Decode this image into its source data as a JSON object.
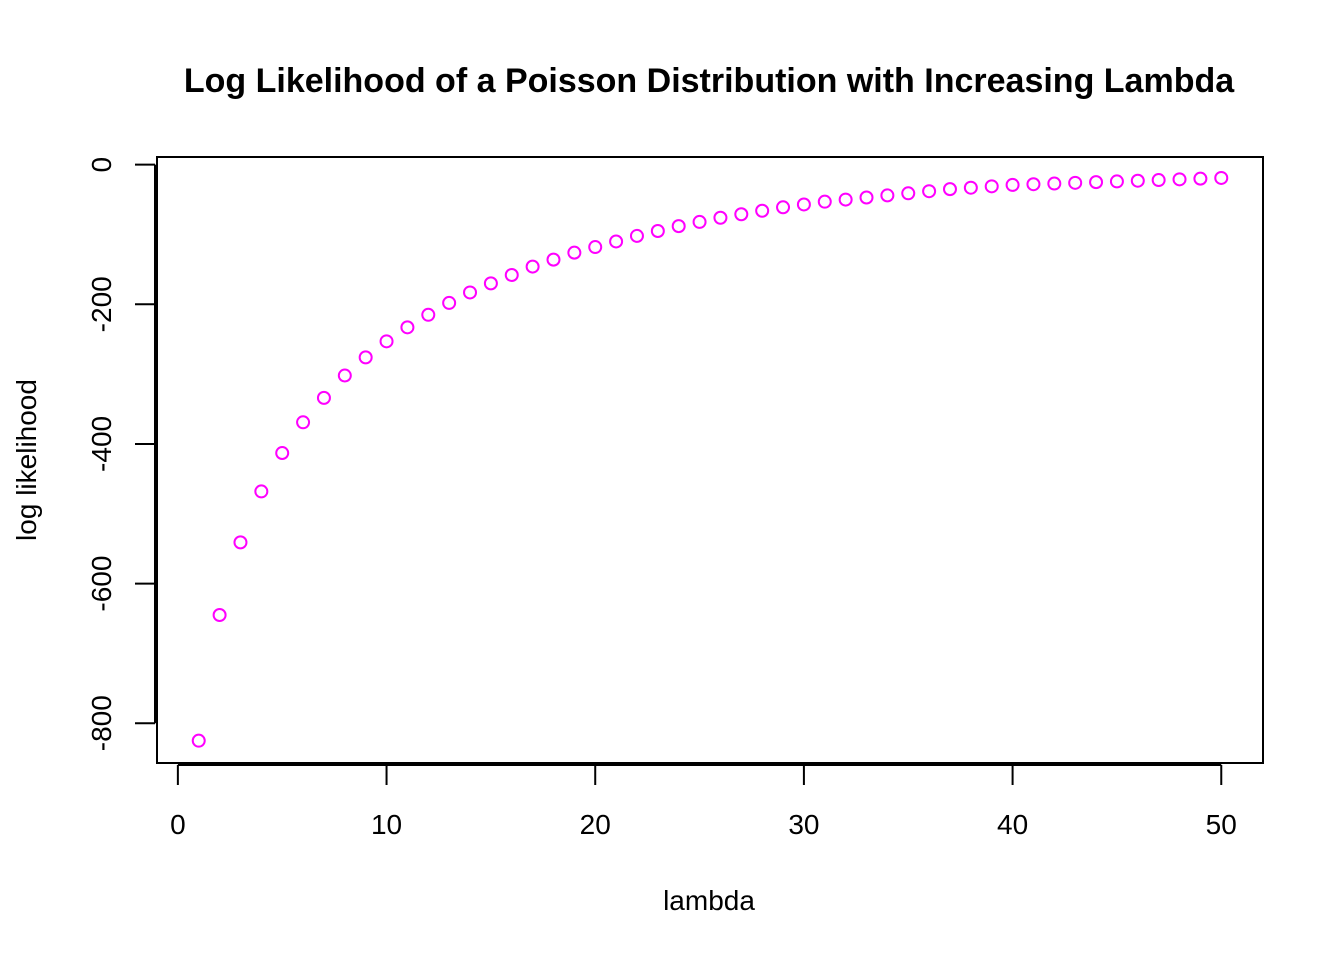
{
  "chart_data": {
    "type": "scatter",
    "title": "Log Likelihood of a Poisson Distribution with Increasing Lambda",
    "xlabel": "lambda",
    "ylabel": "log likelihood",
    "xlim": [
      -1,
      52
    ],
    "ylim": [
      -857,
      11
    ],
    "x_ticks": [
      0,
      10,
      20,
      30,
      40,
      50
    ],
    "y_ticks": [
      0,
      -200,
      -400,
      -600,
      -800
    ],
    "x_tick_labels": [
      "0",
      "10",
      "20",
      "30",
      "40",
      "50"
    ],
    "y_tick_labels": [
      "0",
      "-200",
      "-400",
      "-600",
      "-800"
    ],
    "marker": "open-circle",
    "point_color": "#ff00ff",
    "grid": false,
    "legend": "none",
    "series": [
      {
        "x": [
          1,
          2,
          3,
          4,
          5,
          6,
          7,
          8,
          9,
          10,
          11,
          12,
          13,
          14,
          15,
          16,
          17,
          18,
          19,
          20,
          21,
          22,
          23,
          24,
          25,
          26,
          27,
          28,
          29,
          30,
          31,
          32,
          33,
          34,
          35,
          36,
          37,
          38,
          39,
          40,
          41,
          42,
          43,
          44,
          45,
          46,
          47,
          48,
          49,
          50
        ],
        "values": [
          -825,
          -645,
          -541,
          -468,
          -413,
          -369,
          -334,
          -302,
          -276,
          -253,
          -233,
          -215,
          -198,
          -183,
          -170,
          -158,
          -146,
          -136,
          -126,
          -118,
          -110,
          -102,
          -95,
          -88,
          -82,
          -76,
          -71,
          -66,
          -61,
          -57,
          -53,
          -50,
          -47,
          -44,
          -41,
          -38,
          -35,
          -33,
          -31,
          -29,
          -28,
          -27,
          -26,
          -25,
          -24,
          -23,
          -22,
          -21,
          -20,
          -19
        ]
      }
    ]
  }
}
